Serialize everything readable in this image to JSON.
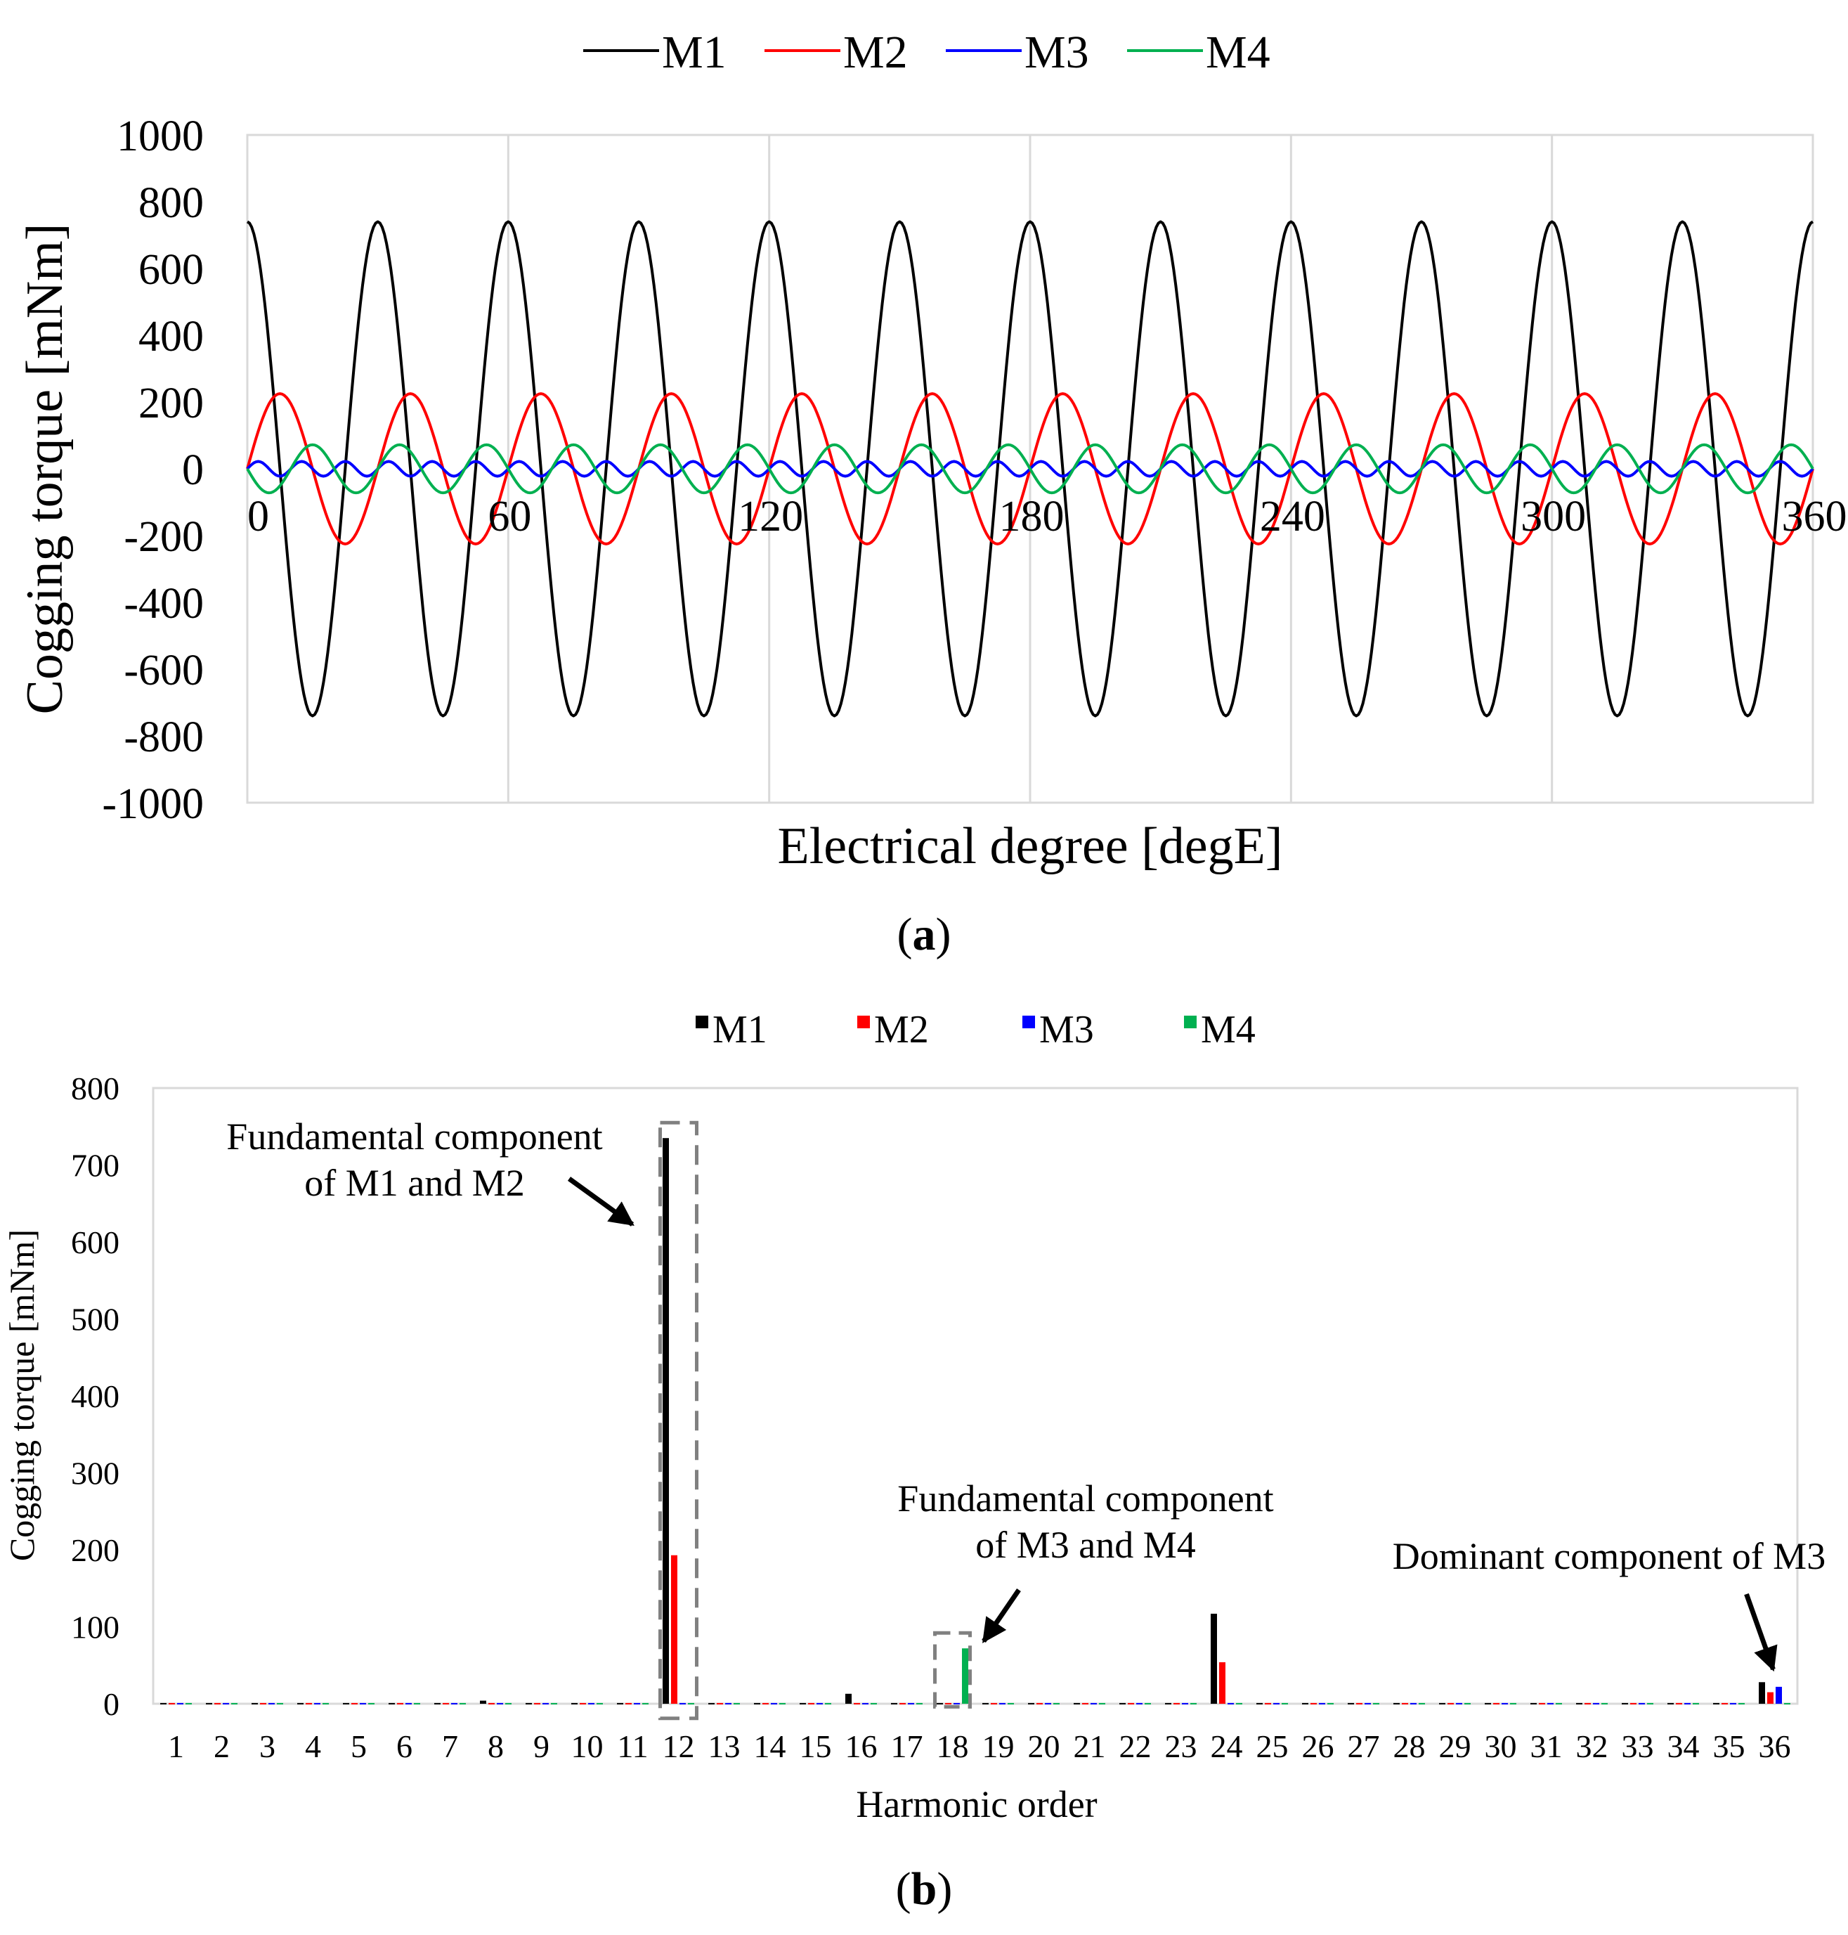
{
  "figure": {
    "panel_a_label": "a",
    "panel_b_label": "b"
  },
  "colors": {
    "M1": "#000000",
    "M2": "#ff0000",
    "M3": "#0000ff",
    "M4": "#00b050",
    "grid": "#d9d9d9",
    "annotation_box": "#808080"
  },
  "chart_data": [
    {
      "type": "line",
      "xlabel": "Electrical degree [degE]",
      "ylabel": "Cogging torque [mNm]",
      "xlim": [
        0,
        360
      ],
      "ylim": [
        -1000,
        1000
      ],
      "x_ticks": [
        "0",
        "60",
        "120",
        "180",
        "240",
        "300",
        "360"
      ],
      "y_ticks": [
        "1000",
        "800",
        "600",
        "400",
        "200",
        "0",
        "-200",
        "-400",
        "-600",
        "-800",
        "-1000"
      ],
      "legend_position": "top-center",
      "series": [
        {
          "name": "M1",
          "amplitude": 740,
          "harmonic": 12,
          "waveform": "cosine",
          "unit": "mNm"
        },
        {
          "name": "M2",
          "amplitude": 225,
          "harmonic": 12,
          "waveform": "sine",
          "unit": "mNm"
        },
        {
          "name": "M3",
          "amplitude": 22,
          "harmonic": 36,
          "waveform": "sine",
          "unit": "mNm"
        },
        {
          "name": "M4",
          "amplitude": 72,
          "harmonic": 18,
          "waveform": "negative-sine",
          "unit": "mNm"
        }
      ]
    },
    {
      "type": "bar",
      "xlabel": "Harmonic order",
      "ylabel": "Cogging torque [mNm]",
      "ylim": [
        0,
        800
      ],
      "y_ticks": [
        "0",
        "100",
        "200",
        "300",
        "400",
        "500",
        "600",
        "700",
        "800"
      ],
      "categories": [
        "1",
        "2",
        "3",
        "4",
        "5",
        "6",
        "7",
        "8",
        "9",
        "10",
        "11",
        "12",
        "13",
        "14",
        "15",
        "16",
        "17",
        "18",
        "19",
        "20",
        "21",
        "22",
        "23",
        "24",
        "25",
        "26",
        "27",
        "28",
        "29",
        "30",
        "31",
        "32",
        "33",
        "34",
        "35",
        "36"
      ],
      "legend_position": "top-center",
      "series": [
        {
          "name": "M1",
          "values": [
            1,
            1,
            1,
            1,
            1,
            1,
            1,
            4,
            1,
            1,
            1,
            735,
            1,
            1,
            1,
            13,
            1,
            1,
            1,
            1,
            1,
            1,
            1,
            117,
            1,
            1,
            1,
            1,
            1,
            1,
            1,
            1,
            1,
            1,
            1,
            28
          ]
        },
        {
          "name": "M2",
          "values": [
            1,
            1,
            1,
            1,
            1,
            1,
            1,
            1,
            1,
            1,
            1,
            193,
            1,
            1,
            1,
            1,
            1,
            1,
            1,
            1,
            1,
            1,
            1,
            54,
            1,
            1,
            1,
            1,
            1,
            1,
            1,
            1,
            1,
            1,
            1,
            15
          ]
        },
        {
          "name": "M3",
          "values": [
            1,
            1,
            1,
            1,
            1,
            1,
            1,
            1,
            1,
            1,
            1,
            1,
            1,
            1,
            1,
            1,
            1,
            1,
            1,
            1,
            1,
            1,
            1,
            1,
            1,
            1,
            1,
            1,
            1,
            1,
            1,
            1,
            1,
            1,
            1,
            22
          ]
        },
        {
          "name": "M4",
          "values": [
            1,
            1,
            1,
            1,
            1,
            1,
            1,
            1,
            1,
            1,
            1,
            1,
            1,
            1,
            1,
            1,
            1,
            72,
            1,
            1,
            1,
            1,
            1,
            1,
            1,
            1,
            1,
            1,
            1,
            1,
            1,
            1,
            1,
            1,
            1,
            1
          ]
        }
      ],
      "annotations": [
        {
          "lines": [
            "Fundamental component",
            "of M1 and M2"
          ],
          "target_category": "12"
        },
        {
          "lines": [
            "Fundamental component",
            "of M3 and M4"
          ],
          "target_category": "18"
        },
        {
          "lines": [
            "Dominant component of M3"
          ],
          "target_category": "36"
        }
      ]
    }
  ]
}
